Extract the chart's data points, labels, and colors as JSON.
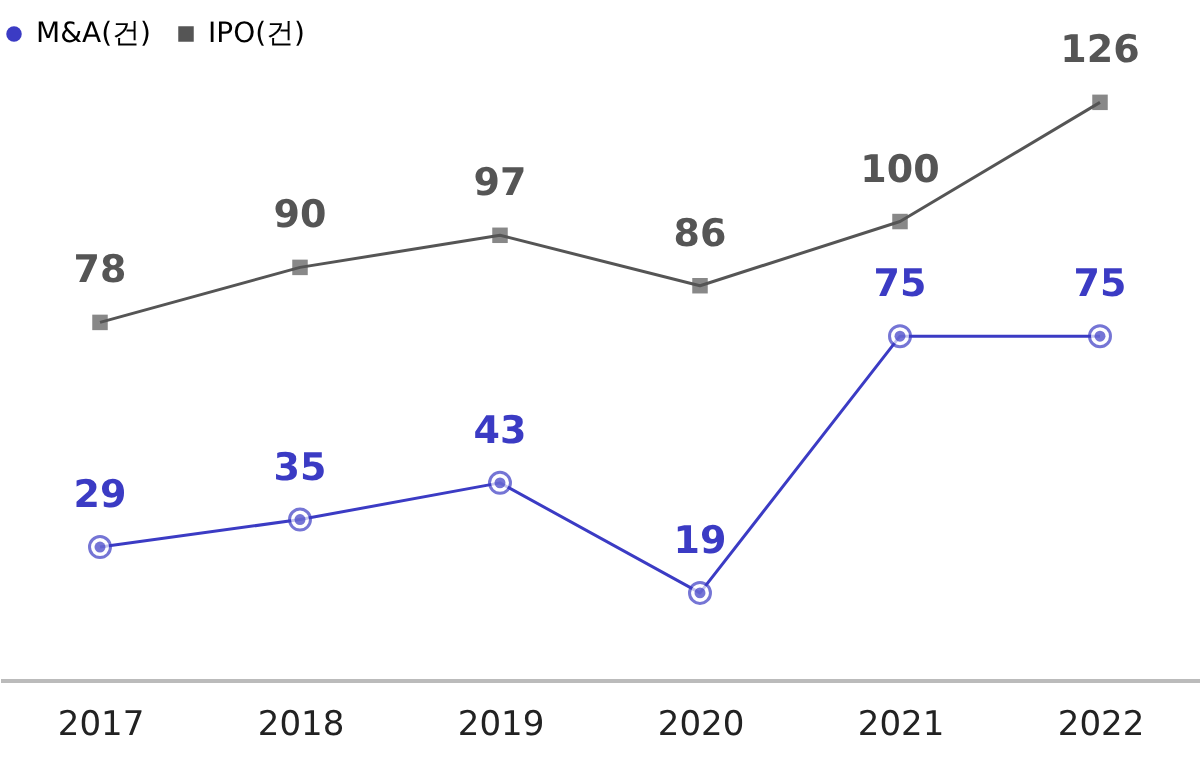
{
  "chart_data": {
    "type": "line",
    "categories": [
      "2017",
      "2018",
      "2019",
      "2020",
      "2021",
      "2022"
    ],
    "series": [
      {
        "name": "M&A(건)",
        "color": "#3b3bc4",
        "marker": "circle",
        "values": [
          29,
          35,
          43,
          19,
          75,
          75
        ]
      },
      {
        "name": "IPO(건)",
        "color": "#555555",
        "marker": "square",
        "values": [
          78,
          90,
          97,
          86,
          100,
          126
        ]
      }
    ],
    "data_labels": true,
    "legend": "top",
    "grid": false,
    "tick_labels": "x"
  }
}
